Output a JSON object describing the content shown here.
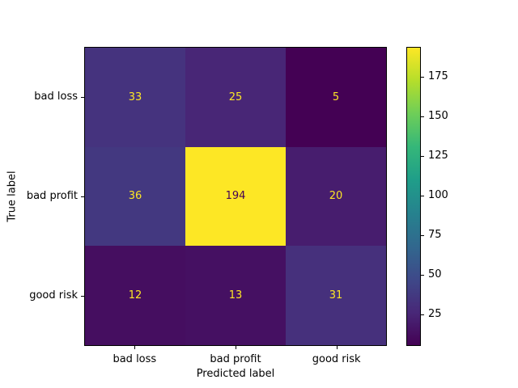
{
  "chart_data": {
    "type": "heatmap",
    "title": "",
    "xlabel": "Predicted label",
    "ylabel": "True label",
    "categories": [
      "bad loss",
      "bad profit",
      "good risk"
    ],
    "matrix": [
      [
        33,
        25,
        5
      ],
      [
        36,
        194,
        20
      ],
      [
        12,
        13,
        31
      ]
    ],
    "vmin": 5,
    "vmax": 194,
    "colormap": "viridis",
    "colorbar_ticks": [
      25,
      50,
      75,
      100,
      125,
      150,
      175
    ],
    "legend_position": "right-colorbar",
    "grid": false,
    "cell_colors": [
      [
        "#45337e",
        "#482676",
        "#440154"
      ],
      [
        "#433880",
        "#fde725",
        "#471d6e"
      ],
      [
        "#450e60",
        "#451062",
        "#46307c"
      ]
    ],
    "text_colors": [
      [
        "#fde725",
        "#fde725",
        "#fde725"
      ],
      [
        "#fde725",
        "#440154",
        "#fde725"
      ],
      [
        "#fde725",
        "#fde725",
        "#fde725"
      ]
    ],
    "viridis_stops": [
      "#440154",
      "#482878",
      "#3e4989",
      "#31688e",
      "#26828e",
      "#1f9e89",
      "#35b779",
      "#6ece58",
      "#b5de2b",
      "#fde725"
    ],
    "colors": {
      "spine": "#000000",
      "background": "#ffffff",
      "tick_text": "#000000"
    }
  }
}
